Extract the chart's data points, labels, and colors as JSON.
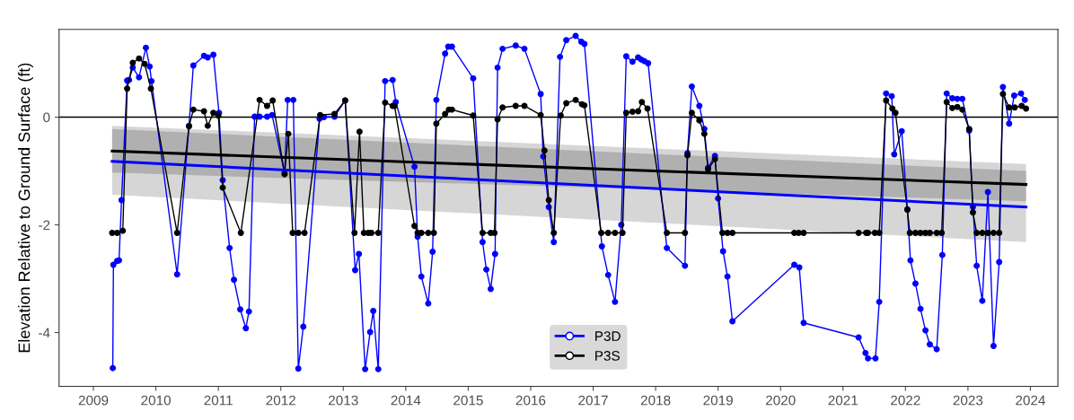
{
  "chart_data": {
    "type": "line",
    "ylabel": "Elevation Relative to Ground Surface (ft)",
    "xlim": [
      2008.45,
      2024.44
    ],
    "ylim": [
      -5.0,
      1.63
    ],
    "xticks": [
      2009,
      2010,
      2011,
      2012,
      2013,
      2014,
      2015,
      2016,
      2017,
      2018,
      2019,
      2020,
      2021,
      2022,
      2023,
      2024
    ],
    "yticks": [
      -4,
      -2,
      0
    ],
    "grid": false,
    "legend": "bottom",
    "marker": "circle",
    "line_style": "solid",
    "ref_lines": [
      {
        "axis": "y",
        "value": 0,
        "color": "#000000"
      }
    ],
    "series": [
      {
        "type": "line",
        "color": "#0000ff",
        "marker": "none",
        "x": [
          2009.3,
          2023.93
        ],
        "values": [
          -0.82,
          -1.67
        ],
        "lower": [
          -1.44,
          -2.32
        ],
        "upper": [
          -0.16,
          -0.87
        ]
      },
      {
        "type": "line",
        "color": "#000000",
        "marker": "none",
        "x": [
          2009.3,
          2023.93
        ],
        "values": [
          -0.63,
          -1.25
        ],
        "lower": [
          -1.03,
          -1.56
        ],
        "upper": [
          -0.22,
          -1.0
        ]
      },
      {
        "name": "P3D",
        "color": "#0000ff",
        "x": [
          2009.31,
          2009.32,
          2009.38,
          2009.41,
          2009.45,
          2009.54,
          2009.57,
          2009.63,
          2009.73,
          2009.84,
          2009.9,
          2009.93,
          2010.34,
          2010.53,
          2010.6,
          2010.77,
          2010.83,
          2010.92,
          2011.01,
          2011.07,
          2011.18,
          2011.25,
          2011.35,
          2011.44,
          2011.49,
          2011.58,
          2011.66,
          2011.78,
          2011.86,
          2012.06,
          2012.11,
          2012.2,
          2012.28,
          2012.36,
          2012.62,
          2012.69,
          2012.86,
          2013.03,
          2013.19,
          2013.25,
          2013.35,
          2013.43,
          2013.48,
          2013.56,
          2013.67,
          2013.79,
          2013.84,
          2014.14,
          2014.19,
          2014.25,
          2014.36,
          2014.43,
          2014.49,
          2014.63,
          2014.68,
          2014.74,
          2015.08,
          2015.23,
          2015.29,
          2015.36,
          2015.43,
          2015.47,
          2015.55,
          2015.76,
          2015.9,
          2016.16,
          2016.2,
          2016.29,
          2016.37,
          2016.47,
          2016.57,
          2016.72,
          2016.81,
          2016.86,
          2017.14,
          2017.24,
          2017.35,
          2017.45,
          2017.53,
          2017.63,
          2017.72,
          2017.77,
          2017.82,
          2017.88,
          2018.18,
          2018.47,
          2018.51,
          2018.58,
          2018.7,
          2018.78,
          2018.84,
          2018.95,
          2019.0,
          2019.08,
          2019.15,
          2019.23,
          2020.22,
          2020.3,
          2020.37,
          2021.25,
          2021.36,
          2021.4,
          2021.52,
          2021.58,
          2021.69,
          2021.78,
          2021.82,
          2021.94,
          2022.03,
          2022.08,
          2022.16,
          2022.24,
          2022.32,
          2022.39,
          2022.5,
          2022.59,
          2022.66,
          2022.75,
          2022.83,
          2022.91,
          2023.02,
          2023.08,
          2023.14,
          2023.23,
          2023.32,
          2023.41,
          2023.5,
          2023.56,
          2023.66,
          2023.74,
          2023.85,
          2023.91
        ],
        "values": [
          -4.66,
          -2.74,
          -2.67,
          -2.66,
          -1.54,
          0.68,
          0.69,
          0.92,
          0.74,
          1.29,
          0.94,
          0.67,
          -2.92,
          -0.16,
          0.96,
          1.14,
          1.11,
          1.16,
          0.08,
          -1.17,
          -2.43,
          -3.02,
          -3.57,
          -3.92,
          -3.61,
          0.01,
          0.01,
          0.01,
          0.04,
          -1.04,
          0.32,
          0.32,
          -4.67,
          -3.89,
          -0.03,
          0.0,
          0.01,
          0.31,
          -2.84,
          -2.54,
          -4.68,
          -3.99,
          -3.6,
          -4.68,
          0.67,
          0.69,
          0.28,
          -0.92,
          -2.22,
          -2.96,
          -3.46,
          -2.5,
          0.32,
          1.18,
          1.31,
          1.31,
          0.72,
          -2.32,
          -2.83,
          -3.19,
          -2.54,
          0.92,
          1.27,
          1.33,
          1.27,
          0.43,
          -0.73,
          -1.67,
          -2.32,
          1.12,
          1.43,
          1.51,
          1.4,
          1.36,
          -2.4,
          -2.93,
          -3.43,
          -2.0,
          1.13,
          1.03,
          1.11,
          1.07,
          1.04,
          1.0,
          -2.43,
          -2.76,
          -0.67,
          0.57,
          0.21,
          -0.22,
          -0.94,
          -0.72,
          -1.51,
          -2.49,
          -2.96,
          -3.79,
          -2.74,
          -2.79,
          -3.82,
          -4.09,
          -4.38,
          -4.48,
          -4.48,
          -3.43,
          0.44,
          0.39,
          -0.69,
          -0.26,
          -1.71,
          -2.66,
          -3.09,
          -3.56,
          -3.96,
          -4.22,
          -4.31,
          -2.56,
          0.44,
          0.35,
          0.34,
          0.34,
          -0.25,
          -1.67,
          -2.76,
          -3.41,
          -1.39,
          -4.25,
          -2.69,
          0.56,
          -0.12,
          0.4,
          0.44,
          0.32
        ]
      },
      {
        "name": "P3S",
        "color": "#000000",
        "x": [
          2009.3,
          2009.38,
          2009.47,
          2009.54,
          2009.63,
          2009.73,
          2009.82,
          2009.92,
          2010.34,
          2010.53,
          2010.6,
          2010.77,
          2010.83,
          2010.92,
          2011.0,
          2011.07,
          2011.36,
          2011.66,
          2011.78,
          2011.87,
          2012.06,
          2012.12,
          2012.19,
          2012.28,
          2012.38,
          2012.63,
          2012.86,
          2013.03,
          2013.18,
          2013.26,
          2013.33,
          2013.4,
          2013.45,
          2013.56,
          2013.67,
          2013.79,
          2013.82,
          2014.14,
          2014.19,
          2014.25,
          2014.36,
          2014.45,
          2014.49,
          2014.63,
          2014.69,
          2014.74,
          2015.08,
          2015.23,
          2015.36,
          2015.42,
          2015.47,
          2015.55,
          2015.76,
          2015.9,
          2016.16,
          2016.22,
          2016.29,
          2016.37,
          2016.48,
          2016.57,
          2016.72,
          2016.82,
          2016.86,
          2017.13,
          2017.24,
          2017.35,
          2017.47,
          2017.53,
          2017.63,
          2017.72,
          2017.78,
          2017.87,
          2018.18,
          2018.47,
          2018.51,
          2018.58,
          2018.7,
          2018.78,
          2018.84,
          2018.95,
          2019.07,
          2019.15,
          2019.23,
          2020.22,
          2020.29,
          2020.37,
          2021.25,
          2021.37,
          2021.4,
          2021.51,
          2021.58,
          2021.69,
          2021.79,
          2021.84,
          2022.03,
          2022.07,
          2022.16,
          2022.24,
          2022.32,
          2022.39,
          2022.5,
          2022.58,
          2022.66,
          2022.75,
          2022.83,
          2022.91,
          2023.02,
          2023.08,
          2023.14,
          2023.23,
          2023.32,
          2023.41,
          2023.5,
          2023.56,
          2023.66,
          2023.75,
          2023.86,
          2023.93
        ],
        "values": [
          -2.15,
          -2.15,
          -2.11,
          0.53,
          1.01,
          1.09,
          0.99,
          0.53,
          -2.15,
          -0.17,
          0.14,
          0.11,
          -0.16,
          0.08,
          0.03,
          -1.31,
          -2.15,
          0.32,
          0.21,
          0.31,
          -1.06,
          -0.31,
          -2.15,
          -2.15,
          -2.15,
          0.04,
          0.06,
          0.31,
          -2.15,
          -0.27,
          -2.15,
          -2.15,
          -2.15,
          -2.15,
          0.27,
          0.21,
          0.21,
          -2.02,
          -2.15,
          -2.15,
          -2.15,
          -2.15,
          -0.12,
          0.06,
          0.14,
          0.14,
          0.03,
          -2.15,
          -2.15,
          -2.15,
          -0.04,
          0.18,
          0.21,
          0.21,
          0.04,
          -0.62,
          -1.54,
          -2.15,
          0.03,
          0.26,
          0.32,
          0.24,
          0.22,
          -2.15,
          -2.15,
          -2.15,
          -2.15,
          0.08,
          0.1,
          0.11,
          0.28,
          0.16,
          -2.15,
          -2.15,
          -0.71,
          0.08,
          -0.06,
          -0.31,
          -0.97,
          -0.78,
          -2.15,
          -2.15,
          -2.15,
          -2.15,
          -2.15,
          -2.15,
          -2.15,
          -2.15,
          -2.15,
          -2.15,
          -2.15,
          0.31,
          0.16,
          0.08,
          -1.72,
          -2.15,
          -2.15,
          -2.15,
          -2.15,
          -2.15,
          -2.15,
          -2.15,
          0.28,
          0.17,
          0.19,
          0.14,
          -0.22,
          -1.77,
          -2.15,
          -2.15,
          -2.15,
          -2.15,
          -2.15,
          0.43,
          0.18,
          0.18,
          0.21,
          0.16
        ]
      }
    ]
  }
}
